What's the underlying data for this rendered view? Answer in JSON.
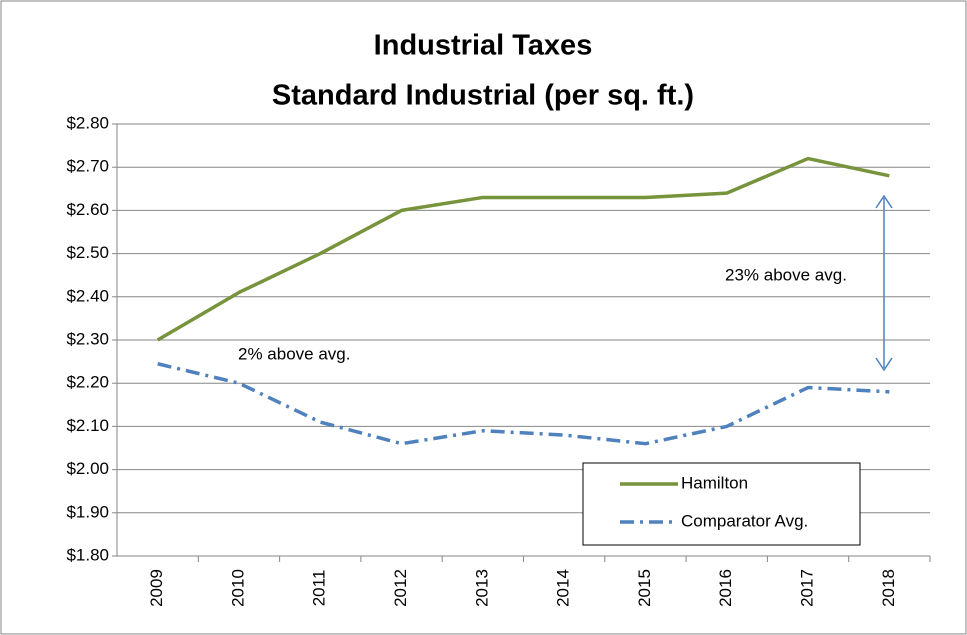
{
  "chart_data": {
    "type": "line",
    "title": "Industrial Taxes",
    "subtitle": "Standard Industrial (per sq. ft.)",
    "categories": [
      "2009",
      "2010",
      "2011",
      "2012",
      "2013",
      "2014",
      "2015",
      "2016",
      "2017",
      "2018"
    ],
    "series": [
      {
        "name": "Hamilton",
        "color": "#77933c",
        "dash": "solid",
        "values": [
          2.3,
          2.41,
          2.5,
          2.6,
          2.63,
          2.63,
          2.63,
          2.64,
          2.72,
          2.68
        ]
      },
      {
        "name": "Comparator Avg.",
        "color": "#4f81bd",
        "dash": "dash-dot",
        "values": [
          2.245,
          2.2,
          2.11,
          2.06,
          2.09,
          2.08,
          2.06,
          2.1,
          2.19,
          2.18
        ]
      }
    ],
    "ylim": [
      1.8,
      2.8
    ],
    "yticks": [
      {
        "value": 1.8,
        "label": "$1.80"
      },
      {
        "value": 1.9,
        "label": "$1.90"
      },
      {
        "value": 2.0,
        "label": "$2.00"
      },
      {
        "value": 2.1,
        "label": "$2.10"
      },
      {
        "value": 2.2,
        "label": "$2.20"
      },
      {
        "value": 2.3,
        "label": "$2.30"
      },
      {
        "value": 2.4,
        "label": "$2.40"
      },
      {
        "value": 2.5,
        "label": "$2.50"
      },
      {
        "value": 2.6,
        "label": "$2.60"
      },
      {
        "value": 2.7,
        "label": "$2.70"
      },
      {
        "value": 2.8,
        "label": "$2.80"
      }
    ],
    "grid": true,
    "annotations": [
      "2% above avg.",
      "23% above avg."
    ]
  }
}
